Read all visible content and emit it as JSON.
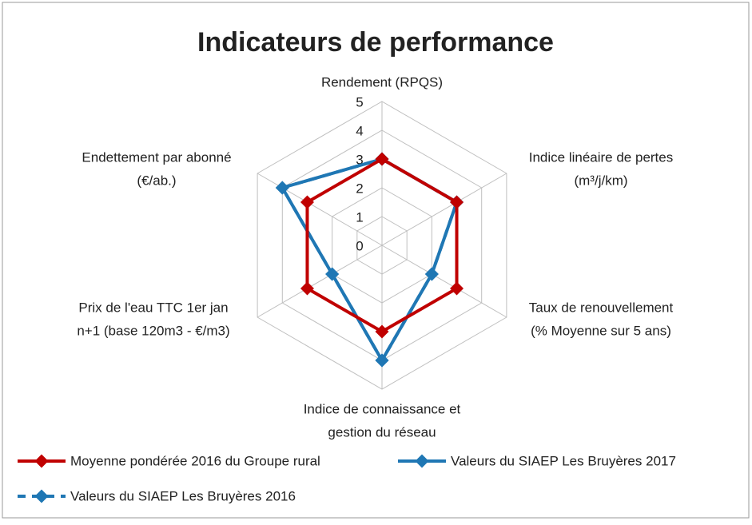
{
  "chart_data": {
    "type": "radar",
    "title": "Indicateurs de performance",
    "categories": [
      [
        "Rendement (RPQS)"
      ],
      [
        "Indice linéaire de pertes",
        "(m³/j/km)"
      ],
      [
        "Taux de renouvellement",
        "(% Moyenne sur 5 ans)"
      ],
      [
        "Indice de connaissance et",
        "gestion du réseau"
      ],
      [
        "Prix de l'eau TTC  1er jan",
        "n+1  (base 120m3 - €/m3)"
      ],
      [
        "Endettement par abonné",
        "(€/ab.)"
      ]
    ],
    "series": [
      {
        "name": "Moyenne pondérée 2016 du Groupe rural",
        "color": "#c00000",
        "dash": false,
        "values": [
          3,
          3,
          3,
          3,
          3,
          3
        ]
      },
      {
        "name": "Valeurs du SIAEP Les Bruyères 2017",
        "color": "#1f77b4",
        "dash": false,
        "values": [
          3,
          3,
          2,
          4,
          2,
          4
        ]
      },
      {
        "name": "Valeurs du SIAEP Les Bruyères 2016",
        "color": "#1f77b4",
        "dash": true,
        "values": [
          3,
          3,
          2,
          4,
          2,
          4
        ]
      }
    ],
    "ylim": [
      0,
      5
    ],
    "yticks": [
      0,
      1,
      2,
      3,
      4,
      5
    ],
    "grid": true
  }
}
